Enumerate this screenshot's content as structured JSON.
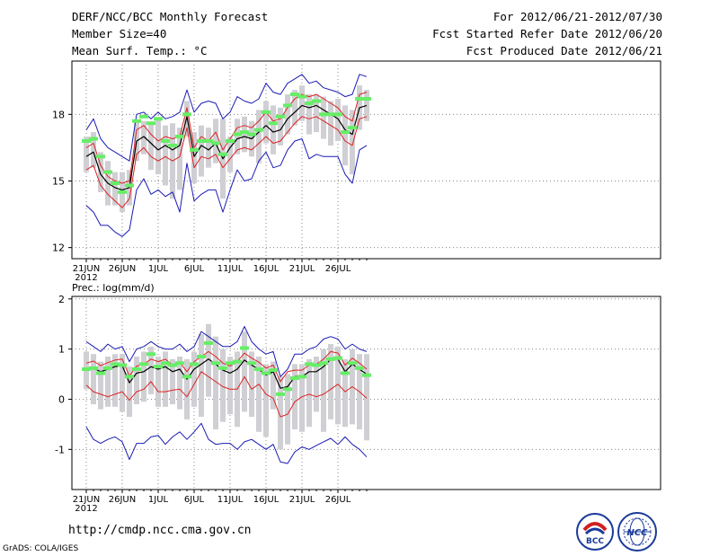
{
  "header": {
    "title": "DERF/NCC/BCC Monthly Forecast",
    "member_size": "Member Size=40",
    "variable": "Mean Surf. Temp.: °C",
    "period": "For 2012/06/21-2012/07/30",
    "start_ref": "Fcst Started Refer Date 2012/06/20",
    "produced": "Fcst Produced Date 2012/06/21"
  },
  "footer": {
    "url": "http://cmdp.ncc.cma.gov.cn",
    "grads": "GrADS: COLA/IGES",
    "logo1_text": "BCC",
    "logo2_text": "NCC"
  },
  "colors": {
    "ensemble_mean": "#000000",
    "spread": "#dd2222",
    "envelope": "#1a1ab4",
    "box": "#cfcfd4",
    "marker": "#66ee66",
    "grid": "#888888"
  },
  "chart_data": [
    {
      "type": "line",
      "title": "Mean Surf. Temp.: °C",
      "x_tick_labels": [
        "21JUN",
        "26JUN",
        "1JUL",
        "6JUL",
        "11JUL",
        "16JUL",
        "21JUL",
        "26JUL"
      ],
      "x_year": "2012",
      "days": 40,
      "ylim": [
        11.5,
        20.4
      ],
      "yticks": [
        12,
        15,
        18
      ],
      "series": [
        {
          "name": "ensemble_mean",
          "values": [
            16.1,
            16.3,
            15.3,
            14.9,
            14.7,
            14.6,
            14.7,
            16.8,
            17.0,
            16.7,
            16.4,
            16.6,
            16.4,
            16.6,
            17.9,
            16.1,
            16.6,
            16.4,
            16.7,
            16.0,
            16.5,
            16.9,
            17.0,
            16.9,
            17.2,
            17.5,
            17.2,
            17.3,
            17.8,
            18.1,
            18.4,
            18.3,
            18.4,
            18.2,
            18.0,
            17.8,
            17.3,
            17.1,
            18.3,
            18.4
          ]
        },
        {
          "name": "upper_spread",
          "values": [
            16.5,
            16.7,
            15.7,
            15.2,
            15.0,
            14.9,
            15.0,
            17.3,
            17.5,
            17.1,
            16.8,
            17.0,
            16.9,
            17.0,
            18.3,
            16.5,
            17.0,
            16.8,
            17.2,
            16.4,
            16.9,
            17.4,
            17.5,
            17.4,
            17.7,
            18.1,
            17.7,
            17.8,
            18.3,
            18.7,
            18.9,
            18.8,
            18.9,
            18.7,
            18.5,
            18.3,
            17.9,
            17.7,
            18.9,
            19.0
          ]
        },
        {
          "name": "lower_spread",
          "values": [
            15.5,
            15.7,
            14.8,
            14.4,
            14.1,
            13.8,
            14.2,
            16.2,
            16.5,
            16.1,
            15.9,
            16.1,
            15.9,
            16.1,
            17.4,
            15.6,
            16.1,
            16.0,
            16.2,
            15.6,
            16.0,
            16.4,
            16.5,
            16.4,
            16.7,
            17.0,
            16.7,
            16.8,
            17.2,
            17.6,
            17.9,
            17.8,
            17.9,
            17.7,
            17.5,
            17.3,
            16.8,
            16.6,
            17.8,
            17.9
          ]
        },
        {
          "name": "upper_envelope",
          "values": [
            17.3,
            17.8,
            16.9,
            16.5,
            16.3,
            16.1,
            15.9,
            18.0,
            18.1,
            17.8,
            18.1,
            17.8,
            17.9,
            18.1,
            19.1,
            18.1,
            18.5,
            18.6,
            18.5,
            17.8,
            18.1,
            18.8,
            18.6,
            18.5,
            18.7,
            19.4,
            19.0,
            18.9,
            19.4,
            19.6,
            19.8,
            19.4,
            19.5,
            19.2,
            19.1,
            19.0,
            18.8,
            18.9,
            19.8,
            19.7
          ]
        },
        {
          "name": "lower_envelope",
          "values": [
            13.9,
            13.6,
            13.0,
            13.0,
            12.7,
            12.5,
            12.8,
            14.6,
            15.1,
            14.4,
            14.6,
            14.3,
            14.5,
            13.6,
            15.8,
            14.1,
            14.4,
            14.6,
            14.6,
            13.6,
            14.6,
            15.5,
            15.0,
            15.1,
            15.9,
            16.3,
            15.6,
            15.7,
            16.4,
            16.8,
            16.9,
            16.0,
            16.2,
            16.1,
            16.1,
            16.1,
            15.3,
            14.9,
            16.4,
            16.6
          ]
        },
        {
          "name": "box_top",
          "values": [
            17.0,
            17.2,
            16.3,
            15.9,
            15.4,
            15.4,
            15.5,
            17.7,
            17.7,
            17.6,
            17.8,
            17.5,
            17.6,
            17.4,
            18.6,
            17.2,
            17.5,
            17.4,
            17.8,
            17.8,
            17.0,
            17.8,
            17.9,
            17.7,
            18.2,
            18.6,
            18.4,
            18.3,
            18.9,
            19.1,
            19.3,
            18.9,
            18.9,
            18.8,
            18.6,
            18.7,
            18.4,
            18.2,
            19.3,
            19.1
          ]
        },
        {
          "name": "box_bottom",
          "values": [
            15.4,
            15.6,
            14.5,
            13.9,
            13.9,
            13.6,
            13.9,
            15.9,
            16.2,
            15.5,
            15.3,
            14.8,
            14.2,
            14.6,
            17.0,
            14.9,
            15.2,
            15.6,
            15.8,
            14.2,
            15.4,
            16.2,
            16.3,
            16.1,
            15.8,
            16.7,
            16.2,
            16.6,
            17.1,
            17.5,
            17.7,
            17.1,
            17.2,
            16.9,
            16.6,
            16.8,
            15.7,
            15.3,
            17.3,
            17.7
          ]
        },
        {
          "name": "deterministic",
          "values": [
            16.8,
            16.9,
            16.1,
            15.4,
            14.9,
            14.5,
            14.8,
            17.7,
            17.9,
            17.6,
            17.8,
            16.8,
            16.6,
            17.0,
            18.0,
            16.4,
            16.8,
            16.8,
            16.7,
            16.2,
            16.8,
            17.1,
            17.2,
            17.1,
            17.3,
            18.1,
            17.6,
            17.9,
            18.4,
            18.9,
            18.8,
            18.5,
            18.6,
            18.0,
            18.0,
            18.0,
            17.2,
            17.4,
            18.7,
            18.7
          ]
        }
      ]
    },
    {
      "type": "line",
      "title": "Prec.: log(mm/d)",
      "x_tick_labels": [
        "21JUN",
        "26JUN",
        "1JUL",
        "6JUL",
        "11JUL",
        "16JUL",
        "21JUL",
        "26JUL"
      ],
      "x_year": "2012",
      "days": 40,
      "ylim": [
        -1.8,
        2.05
      ],
      "yticks": [
        -1,
        0,
        1,
        2
      ],
      "series": [
        {
          "name": "ensemble_mean",
          "values": [
            0.6,
            0.62,
            0.55,
            0.6,
            0.65,
            0.67,
            0.33,
            0.52,
            0.55,
            0.65,
            0.6,
            0.65,
            0.55,
            0.6,
            0.4,
            0.6,
            0.7,
            0.8,
            0.7,
            0.58,
            0.52,
            0.6,
            0.78,
            0.68,
            0.6,
            0.48,
            0.55,
            0.22,
            0.25,
            0.45,
            0.45,
            0.55,
            0.55,
            0.65,
            0.8,
            0.8,
            0.55,
            0.7,
            0.6,
            0.5
          ]
        },
        {
          "name": "upper_spread",
          "values": [
            0.72,
            0.76,
            0.67,
            0.73,
            0.78,
            0.8,
            0.46,
            0.66,
            0.7,
            0.8,
            0.75,
            0.8,
            0.68,
            0.74,
            0.55,
            0.75,
            0.85,
            0.95,
            0.85,
            0.72,
            0.66,
            0.75,
            0.92,
            0.82,
            0.74,
            0.62,
            0.68,
            0.35,
            0.55,
            0.58,
            0.58,
            0.68,
            0.7,
            0.8,
            0.95,
            0.92,
            0.68,
            0.82,
            0.72,
            0.6
          ]
        },
        {
          "name": "lower_spread",
          "values": [
            0.28,
            0.15,
            0.1,
            0.05,
            0.1,
            0.15,
            -0.02,
            0.15,
            0.2,
            0.35,
            0.15,
            0.15,
            0.18,
            0.2,
            0.05,
            0.3,
            0.55,
            0.45,
            0.35,
            0.25,
            0.2,
            0.2,
            0.45,
            0.2,
            0.3,
            0.1,
            0.02,
            -0.35,
            -0.3,
            -0.05,
            0.05,
            0.1,
            0.05,
            0.1,
            0.2,
            0.3,
            0.15,
            0.25,
            0.15,
            0.02
          ]
        },
        {
          "name": "upper_envelope",
          "values": [
            1.15,
            1.05,
            0.95,
            1.1,
            1.0,
            1.05,
            0.75,
            1.0,
            1.05,
            1.15,
            1.05,
            1.0,
            1.0,
            1.1,
            0.95,
            1.05,
            1.35,
            1.25,
            1.15,
            1.05,
            1.05,
            1.15,
            1.45,
            1.15,
            1.0,
            0.9,
            0.95,
            0.45,
            0.6,
            0.9,
            0.9,
            1.0,
            1.05,
            1.2,
            1.25,
            1.2,
            1.0,
            1.1,
            1.0,
            0.95
          ]
        },
        {
          "name": "lower_envelope",
          "values": [
            -0.55,
            -0.8,
            -0.88,
            -0.8,
            -0.75,
            -0.85,
            -1.2,
            -0.88,
            -0.88,
            -0.75,
            -0.72,
            -0.9,
            -0.75,
            -0.65,
            -0.8,
            -0.65,
            -0.48,
            -0.8,
            -0.9,
            -0.88,
            -0.88,
            -1.0,
            -0.85,
            -0.8,
            -0.9,
            -1.0,
            -0.9,
            -1.25,
            -1.28,
            -1.05,
            -0.95,
            -1.0,
            -0.92,
            -0.85,
            -0.78,
            -0.9,
            -0.75,
            -0.9,
            -1.0,
            -1.15
          ]
        },
        {
          "name": "box_top",
          "values": [
            0.95,
            0.9,
            0.75,
            0.85,
            0.9,
            0.9,
            0.65,
            0.85,
            0.95,
            1.05,
            0.85,
            0.95,
            0.8,
            0.85,
            0.8,
            0.95,
            1.3,
            1.5,
            1.25,
            1.0,
            0.85,
            0.95,
            1.35,
            0.95,
            0.85,
            0.7,
            0.75,
            0.45,
            0.5,
            0.7,
            0.7,
            0.8,
            0.85,
            1.0,
            1.1,
            1.05,
            0.8,
            1.0,
            0.9,
            0.9
          ]
        },
        {
          "name": "box_bottom",
          "values": [
            0.2,
            -0.1,
            -0.2,
            -0.15,
            -0.15,
            -0.25,
            -0.35,
            -0.1,
            -0.05,
            0.1,
            -0.15,
            -0.15,
            -0.1,
            -0.2,
            -0.4,
            -0.15,
            -0.35,
            0.05,
            -0.6,
            -0.45,
            -0.3,
            -0.55,
            -0.25,
            -0.35,
            -0.65,
            -0.75,
            -0.2,
            -1.0,
            -0.9,
            -0.6,
            -0.65,
            -0.55,
            -0.25,
            -0.65,
            -0.4,
            -0.5,
            -0.55,
            -0.5,
            -0.6,
            -0.82
          ]
        },
        {
          "name": "deterministic",
          "values": [
            0.6,
            0.62,
            0.52,
            0.62,
            0.7,
            0.68,
            0.45,
            0.6,
            0.7,
            0.9,
            0.65,
            0.72,
            0.68,
            0.72,
            0.45,
            0.7,
            0.85,
            1.12,
            0.72,
            0.62,
            0.72,
            0.75,
            1.02,
            0.72,
            0.6,
            0.52,
            0.58,
            0.1,
            0.2,
            0.42,
            0.45,
            0.7,
            0.68,
            0.72,
            0.8,
            0.82,
            0.52,
            0.72,
            0.62,
            0.48
          ]
        }
      ]
    }
  ]
}
